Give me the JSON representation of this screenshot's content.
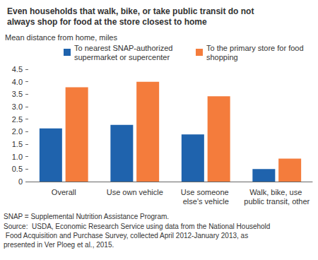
{
  "chart_data": {
    "type": "bar",
    "title": "Even households that walk, bike, or take public transit do not always shop for food at the store closest to home",
    "y_label": "Mean distance from home, miles",
    "categories": [
      "Overall",
      "Use own vehicle",
      "Use someone else's vehicle",
      "Walk, bike, use public transit, other"
    ],
    "series": [
      {
        "name": "To nearest SNAP-authorized supermarket or supercenter",
        "color": "#1f63ad",
        "values": [
          2.13,
          2.27,
          1.89,
          0.5
        ]
      },
      {
        "name": "To the primary store for food shopping",
        "color": "#f47c3c",
        "values": [
          3.78,
          4.0,
          3.42,
          0.92
        ]
      }
    ],
    "ylim": [
      0,
      4.5
    ],
    "yticks": [
      0,
      0.5,
      {
        "value": 1,
        "label": "1.0"
      },
      1.5,
      {
        "value": 2,
        "label": "2.0"
      },
      2.5,
      {
        "value": 3,
        "label": "3.0"
      },
      3.5,
      {
        "value": 4,
        "label": "4.0"
      },
      4.5
    ],
    "grid": false,
    "legend": "top",
    "annotations": [
      "SNAP = Supplemental Nutrition Assistance Program.",
      "Source:  USDA, Economic Research Service using data from the National Household Food Acquisition and Purchase Survey, collected April 2012-January 2013, as presented in Ver Ploeg et al., 2015."
    ]
  }
}
